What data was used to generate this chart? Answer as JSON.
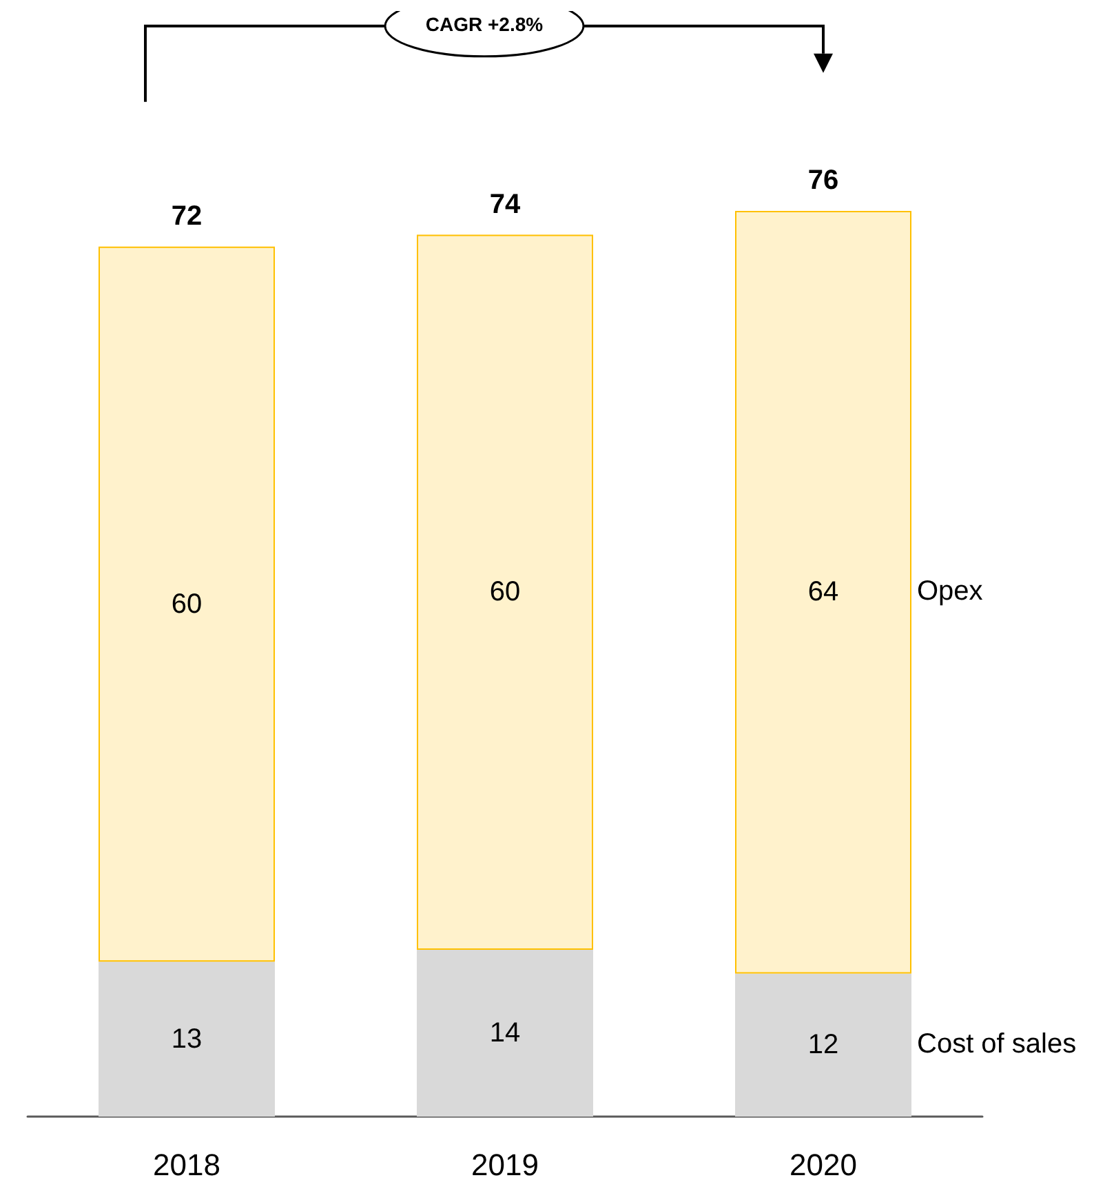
{
  "chart_data": {
    "type": "bar",
    "stacked": true,
    "categories": [
      "2018",
      "2019",
      "2020"
    ],
    "series": [
      {
        "name": "Cost of sales",
        "color": "#d9d9d9",
        "values": [
          13,
          14,
          12
        ]
      },
      {
        "name": "Opex",
        "color": "#fff2cc",
        "values": [
          60,
          60,
          64
        ]
      }
    ],
    "data_labels": true,
    "totals": [
      "72",
      "74",
      "76"
    ],
    "annotations": [
      "CAGR +2.8%"
    ],
    "legend": false,
    "grid": false
  }
}
